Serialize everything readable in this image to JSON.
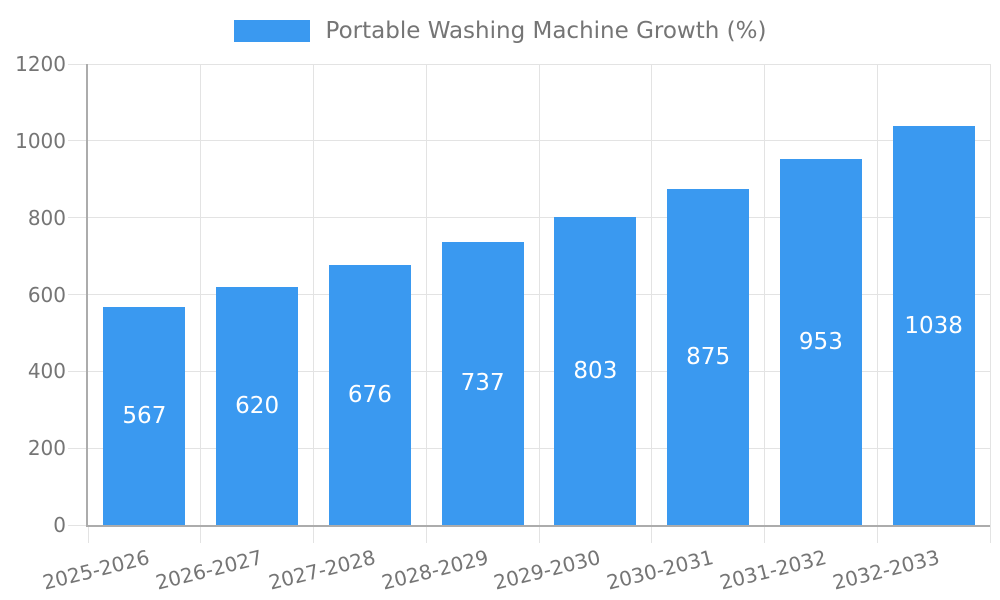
{
  "legend": {
    "label": "Portable Washing Machine Growth (%)"
  },
  "chart_data": {
    "type": "bar",
    "title": "Portable Washing Machine Growth (%)",
    "categories": [
      "2025-2026",
      "2026-2027",
      "2027-2028",
      "2028-2029",
      "2029-2030",
      "2030-2031",
      "2031-2032",
      "2032-2033"
    ],
    "values": [
      567,
      620,
      676,
      737,
      803,
      875,
      953,
      1038
    ],
    "series": [
      {
        "name": "Portable Washing Machine Growth (%)",
        "values": [
          567,
          620,
          676,
          737,
          803,
          875,
          953,
          1038
        ]
      }
    ],
    "xlabel": "",
    "ylabel": "",
    "ylim": [
      0,
      1200
    ],
    "ytick_step": 200,
    "ytick_labels": [
      "0",
      "200",
      "400",
      "600",
      "800",
      "1000",
      "1200"
    ],
    "grid": true,
    "legend_position": "top",
    "bar_labels_inside": true,
    "colors": {
      "bar": "#3a99f0",
      "bar_label": "#ffffff",
      "axis_text": "#757575",
      "axis_line": "#acacac",
      "grid_line": "#e3e3e3",
      "background": "#ffffff"
    }
  }
}
